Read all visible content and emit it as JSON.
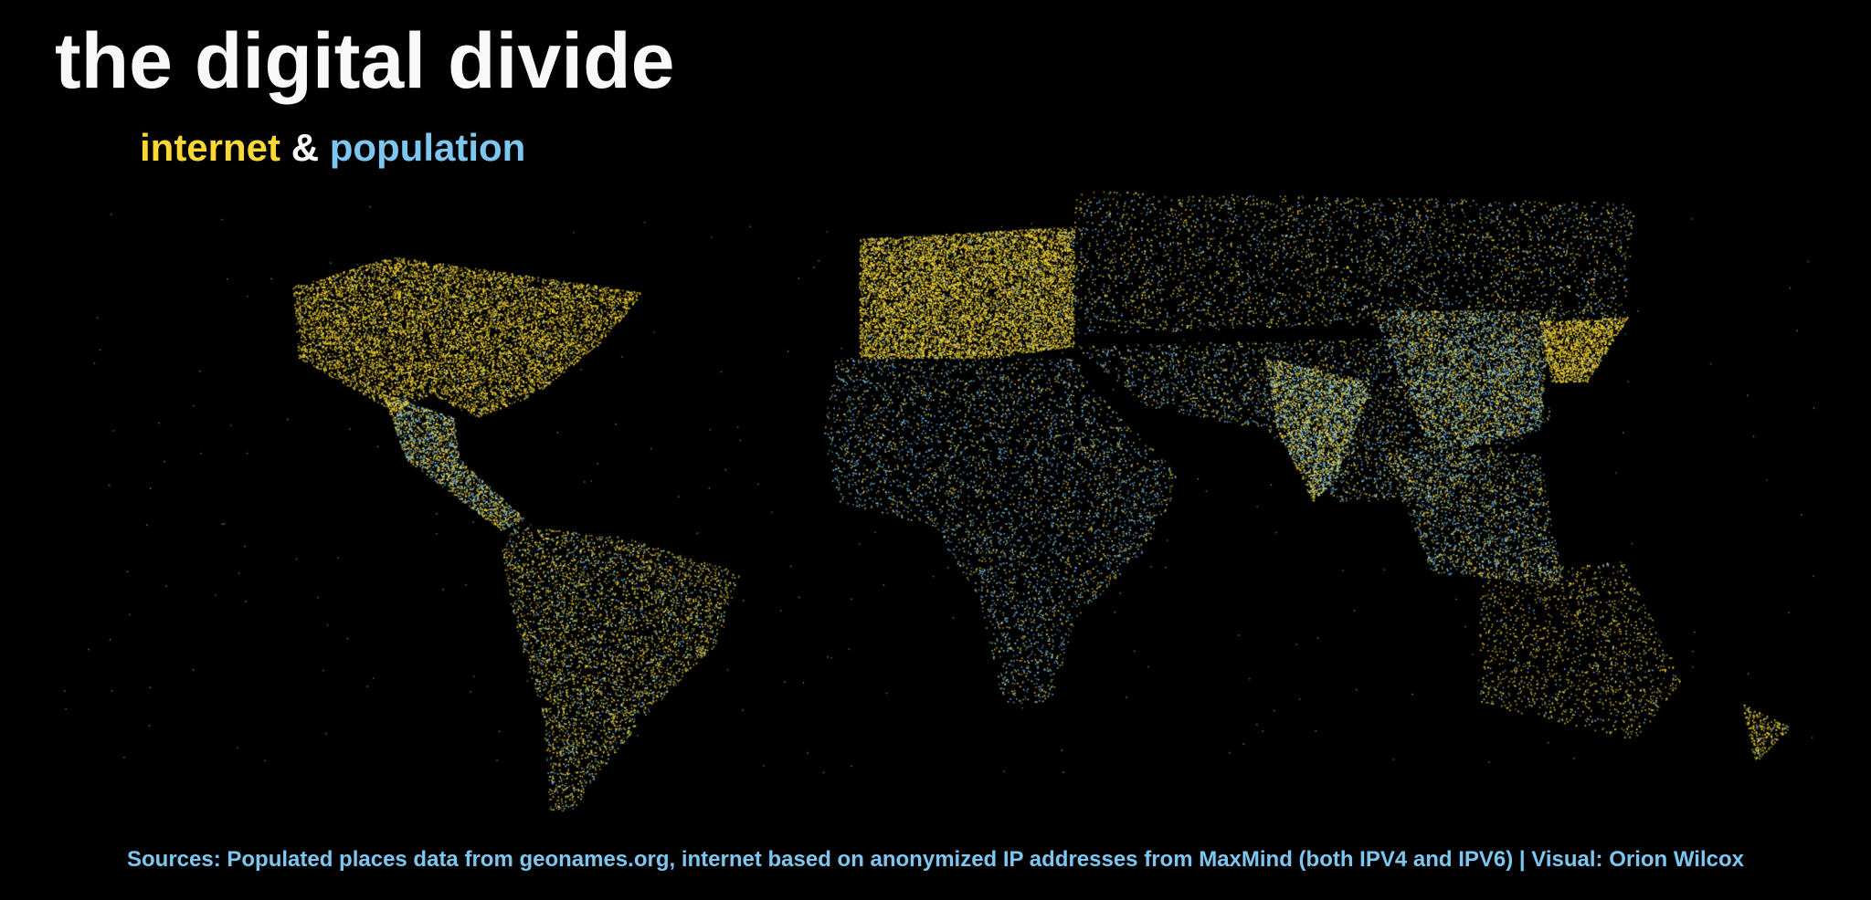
{
  "title": "the digital divide",
  "subtitle": {
    "internet": "internet",
    "ampersand": "&",
    "population": "population"
  },
  "footer": "Sources: Populated places data from geonames.org, internet based on anonymized IP addresses from MaxMind (both IPV4 and IPV6) | Visual: Orion Wilcox",
  "colors": {
    "background": "#000000",
    "internet": "#f9d835",
    "population": "#7cc6f0",
    "title": "#f8f8f8"
  },
  "legend": [
    {
      "label": "internet",
      "color": "#f9d835"
    },
    {
      "label": "population",
      "color": "#7cc6f0"
    }
  ]
}
